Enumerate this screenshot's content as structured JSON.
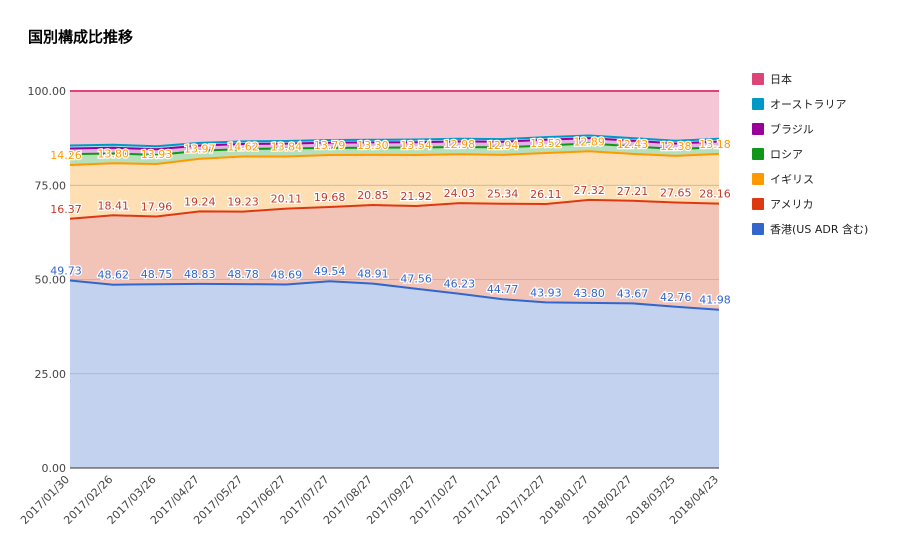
{
  "title": "国別構成比推移",
  "chart_data": {
    "type": "area",
    "stacked": true,
    "title": "国別構成比推移",
    "xlabel": "",
    "ylabel": "",
    "ylim": [
      0,
      100
    ],
    "yticks": [
      "0.00",
      "25.00",
      "50.00",
      "75.00",
      "100.00"
    ],
    "categories": [
      "2017/01/30",
      "2017/02/26",
      "2017/03/26",
      "2017/04/27",
      "2017/05/27",
      "2017/06/27",
      "2017/07/27",
      "2017/08/27",
      "2017/09/27",
      "2017/10/27",
      "2017/11/27",
      "2017/12/27",
      "2018/01/27",
      "2018/02/27",
      "2018/03/25",
      "2018/04/23"
    ],
    "series": [
      {
        "name": "香港(US ADR 含む)",
        "color": "#3366cc",
        "fill": "#c3d2ef",
        "label_color": "#3366cc",
        "values": [
          49.73,
          48.62,
          48.75,
          48.83,
          48.78,
          48.69,
          49.54,
          48.91,
          47.56,
          46.23,
          44.77,
          43.93,
          43.8,
          43.67,
          42.76,
          41.98
        ]
      },
      {
        "name": "アメリカ",
        "color": "#dc3912",
        "fill": "#f2c4b7",
        "label_color": "#c0392b",
        "values": [
          16.37,
          18.41,
          17.96,
          19.24,
          19.23,
          20.11,
          19.68,
          20.85,
          21.92,
          24.03,
          25.34,
          26.11,
          27.32,
          27.21,
          27.65,
          28.16
        ]
      },
      {
        "name": "イギリス",
        "color": "#ff9900",
        "fill": "#fddfb3",
        "label_color": "#ff9900",
        "values": [
          14.26,
          13.8,
          13.93,
          13.97,
          14.62,
          13.84,
          13.79,
          13.3,
          13.54,
          12.98,
          12.94,
          13.52,
          12.89,
          12.43,
          12.38,
          13.18
        ]
      },
      {
        "name": "ロシア",
        "color": "#109618",
        "fill": "#b7dfb9",
        "label_color": "#109618",
        "values": [
          2.9,
          2.6,
          2.4,
          2.1,
          2.0,
          2.1,
          1.9,
          1.9,
          2.0,
          1.9,
          2.0,
          2.0,
          2.1,
          2.0,
          1.8,
          1.8
        ]
      },
      {
        "name": "ブラジル",
        "color": "#990099",
        "fill": "#e1b3e1",
        "label_color": "#990099",
        "values": [
          1.5,
          1.5,
          1.5,
          1.4,
          1.3,
          1.3,
          1.4,
          1.4,
          1.4,
          1.5,
          1.5,
          1.5,
          1.4,
          1.5,
          1.5,
          1.5
        ]
      },
      {
        "name": "オーストラリア",
        "color": "#0099c6",
        "fill": "#b3e0ee",
        "label_color": "#0099c6",
        "values": [
          0.8,
          0.8,
          0.8,
          0.7,
          0.7,
          0.7,
          0.7,
          0.7,
          0.7,
          0.7,
          0.7,
          0.7,
          0.7,
          0.7,
          0.7,
          0.7
        ]
      },
      {
        "name": "日本",
        "color": "#dd4477",
        "fill": "#f5c6d6",
        "label_color": "#dd4477",
        "values": [
          14.44,
          14.27,
          14.66,
          13.76,
          13.37,
          13.26,
          12.99,
          12.94,
          12.88,
          12.66,
          12.75,
          12.24,
          11.79,
          12.49,
          13.21,
          12.68
        ]
      }
    ],
    "labeled_series": [
      "香港(US ADR 含む)",
      "アメリカ",
      "イギリス"
    ],
    "legend_order": [
      "日本",
      "オーストラリア",
      "ブラジル",
      "ロシア",
      "イギリス",
      "アメリカ",
      "香港(US ADR 含む)"
    ],
    "legend_position": "right",
    "grid": true
  }
}
